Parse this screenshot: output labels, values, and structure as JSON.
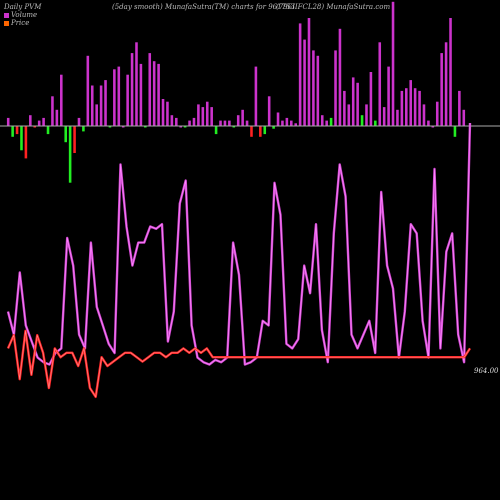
{
  "header": {
    "left": "Daily PVM",
    "center": "(5day smooth) MunafaSutra(TM) charts for 961753",
    "right": "(796IIFCL28) MunafaSutra.com"
  },
  "legend": {
    "volume_label": "Volume",
    "price_label": "Price",
    "volume_color": "#cc33cc",
    "price_color": "#ff6600"
  },
  "last_price_label": "964.00",
  "colors": {
    "background": "#000000",
    "volume_up": "#cc33cc",
    "volume_down_red": "#ff2222",
    "volume_down_green": "#22ee22",
    "volume_line": "#cc44cc",
    "volume_line_highlight": "#ff88ff",
    "price_line": "#ff2222",
    "price_line_highlight": "#ff8888",
    "baseline": "#aaaaaa"
  },
  "chart_data": {
    "type": "bar",
    "series": [
      {
        "name": "Volume",
        "values": [
          3,
          -4,
          -3,
          -9,
          -12,
          4,
          0,
          2,
          3,
          -3,
          11,
          6,
          19,
          -6,
          -21,
          -10,
          3,
          -2,
          26,
          15,
          8,
          15,
          17,
          0,
          21,
          22,
          0,
          19,
          27,
          31,
          23,
          0,
          27,
          24,
          23,
          10,
          9,
          4,
          3,
          0,
          0,
          2,
          3,
          8,
          7,
          9,
          7,
          -3,
          2,
          2,
          2,
          0,
          4,
          6,
          2,
          -4,
          22,
          -4,
          -3,
          11,
          -1,
          5,
          2,
          3,
          2,
          1,
          38,
          32,
          40,
          28,
          26,
          4,
          2,
          3,
          28,
          36,
          13,
          8,
          18,
          16,
          4,
          8,
          20,
          2,
          31,
          7,
          22,
          46,
          6,
          13,
          14,
          17,
          14,
          13,
          8,
          2,
          0,
          9,
          27,
          31,
          40,
          -4,
          13,
          6
        ],
        "colors": [
          "up",
          "green",
          "red",
          "green",
          "red",
          "up",
          "red",
          "up",
          "up",
          "green",
          "up",
          "up",
          "up",
          "green",
          "green",
          "red",
          "up",
          "green",
          "up",
          "up",
          "up",
          "up",
          "up",
          "green",
          "up",
          "up",
          "up",
          "up",
          "up",
          "up",
          "up",
          "green",
          "up",
          "up",
          "up",
          "up",
          "up",
          "up",
          "up",
          "up",
          "green",
          "up",
          "up",
          "up",
          "up",
          "up",
          "up",
          "green",
          "up",
          "up",
          "up",
          "green",
          "up",
          "up",
          "up",
          "red",
          "up",
          "red",
          "green",
          "up",
          "green",
          "up",
          "up",
          "up",
          "up",
          "up",
          "up",
          "up",
          "up",
          "up",
          "up",
          "up",
          "up",
          "green",
          "up",
          "up",
          "up",
          "up",
          "up",
          "up",
          "green",
          "up",
          "up",
          "green",
          "up",
          "up",
          "up",
          "up",
          "up",
          "up",
          "up",
          "up",
          "up",
          "up",
          "up",
          "up",
          "up",
          "up",
          "up",
          "up",
          "up",
          "green",
          "up",
          "up"
        ]
      },
      {
        "name": "Volume line",
        "values": [
          28,
          18,
          45,
          22,
          15,
          8,
          6,
          5,
          10,
          12,
          60,
          48,
          18,
          12,
          58,
          30,
          22,
          14,
          10,
          92,
          65,
          48,
          58,
          58,
          65,
          64,
          66,
          15,
          28,
          75,
          85,
          22,
          8,
          6,
          5,
          7,
          6,
          8,
          58,
          44,
          5,
          6,
          8,
          24,
          22,
          84,
          70,
          14,
          12,
          16,
          48,
          36,
          66,
          20,
          6,
          62,
          92,
          78,
          18,
          12,
          18,
          24,
          10,
          80,
          48,
          38,
          8,
          28,
          66,
          62,
          24,
          8,
          90,
          12,
          54,
          62,
          18,
          6,
          110
        ],
        "index_scale": 0.76
      },
      {
        "name": "Price",
        "values": [
          964,
          967,
          957,
          968,
          958,
          967,
          963,
          955,
          964,
          962,
          963,
          963,
          960,
          964,
          955,
          953,
          962,
          960,
          961,
          962,
          963,
          963,
          962,
          961,
          962,
          963,
          963,
          962,
          963,
          963,
          964,
          963,
          964,
          963,
          964,
          962,
          962,
          962,
          962,
          962,
          962,
          962,
          962,
          962,
          962,
          962,
          962,
          962,
          962,
          962,
          962,
          962,
          962,
          962,
          962,
          962,
          962,
          962,
          962,
          962,
          962,
          962,
          962,
          962,
          962,
          962,
          962,
          962,
          962,
          962,
          962,
          962,
          962,
          962,
          962,
          962,
          962,
          962,
          962,
          964
        ]
      }
    ],
    "price_range": [
      950,
      975
    ],
    "grid": false,
    "legend_position": "top-left"
  }
}
